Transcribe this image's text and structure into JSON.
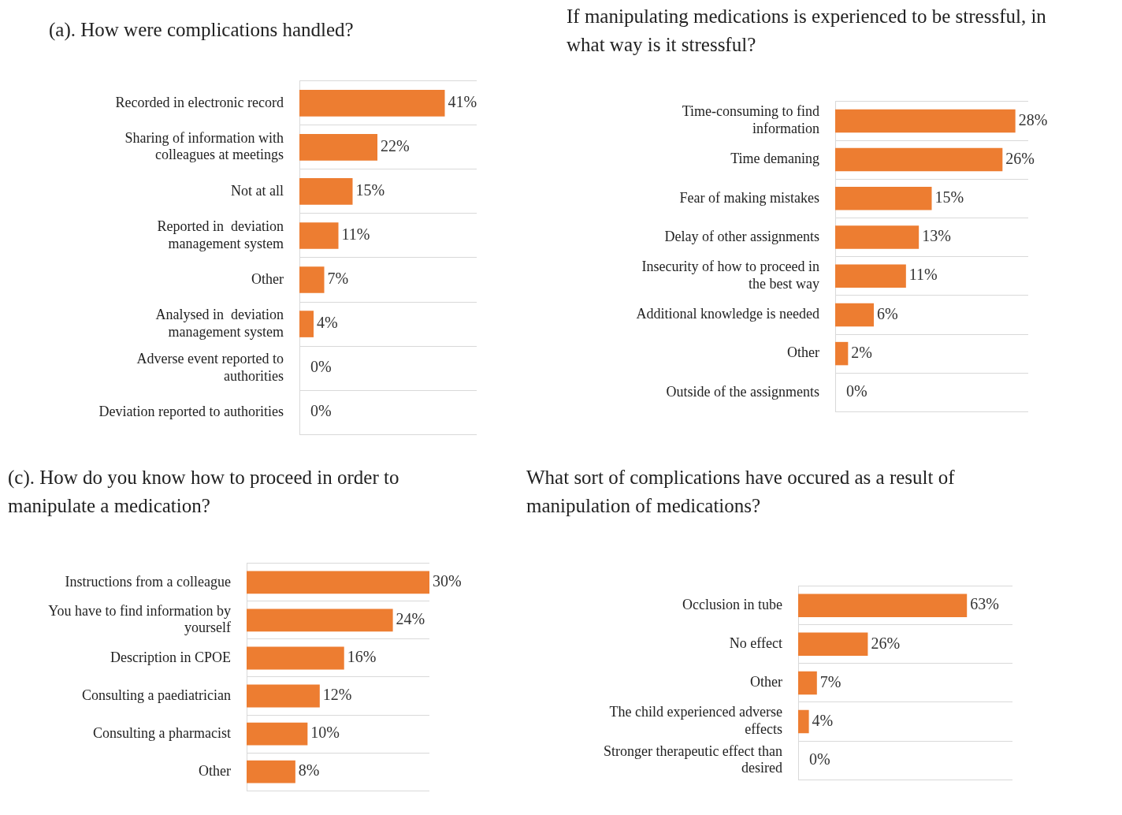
{
  "chart_data": [
    {
      "type": "bar",
      "orientation": "horizontal",
      "title": "(a). How were complications handled?",
      "categories": [
        "Recorded in electronic record",
        "Sharing of information with colleagues at meetings",
        "Not at all",
        "Reported in  deviation management system",
        "Other",
        "Analysed in  deviation management system",
        "Adverse event reported to authorities",
        "Deviation reported to authorities"
      ],
      "values": [
        41,
        22,
        15,
        11,
        7,
        4,
        0,
        0
      ],
      "color": "#ed7d31",
      "value_labels": [
        "41%",
        "22%",
        "15%",
        "11%",
        "7%",
        "4%",
        "0%",
        "0%"
      ],
      "grid": "y",
      "tick_labels": "y",
      "legend": false
    },
    {
      "type": "bar",
      "orientation": "horizontal",
      "title": "If manipulating medications is experienced to be stressful, in what way is it stressful?",
      "categories": [
        "Time-consuming to find information",
        "Time demaning",
        "Fear of making mistakes",
        "Delay of other assignments",
        "Insecurity of how to proceed in the best way",
        "Additional knowledge is needed",
        "Other",
        "Outside of the assignments"
      ],
      "values": [
        28,
        26,
        15,
        13,
        11,
        6,
        2,
        0
      ],
      "color": "#ed7d31",
      "value_labels": [
        "28%",
        "26%",
        "15%",
        "13%",
        "11%",
        "6%",
        "2%",
        "0%"
      ],
      "grid": "y",
      "tick_labels": "y",
      "legend": false
    },
    {
      "type": "bar",
      "orientation": "horizontal",
      "title": "(c). How do you know how to proceed in order to manipulate a medication?",
      "categories": [
        "Instructions from a colleague",
        "You have to find information by yourself",
        "Description in CPOE",
        "Consulting a paediatrician",
        "Consulting a pharmacist",
        "Other"
      ],
      "values": [
        30,
        24,
        16,
        12,
        10,
        8
      ],
      "color": "#ed7d31",
      "value_labels": [
        "30%",
        "24%",
        "16%",
        "12%",
        "10%",
        "8%"
      ],
      "grid": "y",
      "tick_labels": "y",
      "legend": false
    },
    {
      "type": "bar",
      "orientation": "horizontal",
      "title": "What sort of complications have occured as a result of manipulation of medications?",
      "categories": [
        "Occlusion in tube",
        "No effect",
        "Other",
        "The child experienced adverse effects",
        "Stronger therapeutic effect than desired"
      ],
      "values": [
        63,
        26,
        7,
        4,
        0
      ],
      "color": "#ed7d31",
      "value_labels": [
        "63%",
        "26%",
        "7%",
        "4%",
        "0%"
      ],
      "grid": "y",
      "tick_labels": "y",
      "legend": false
    }
  ]
}
